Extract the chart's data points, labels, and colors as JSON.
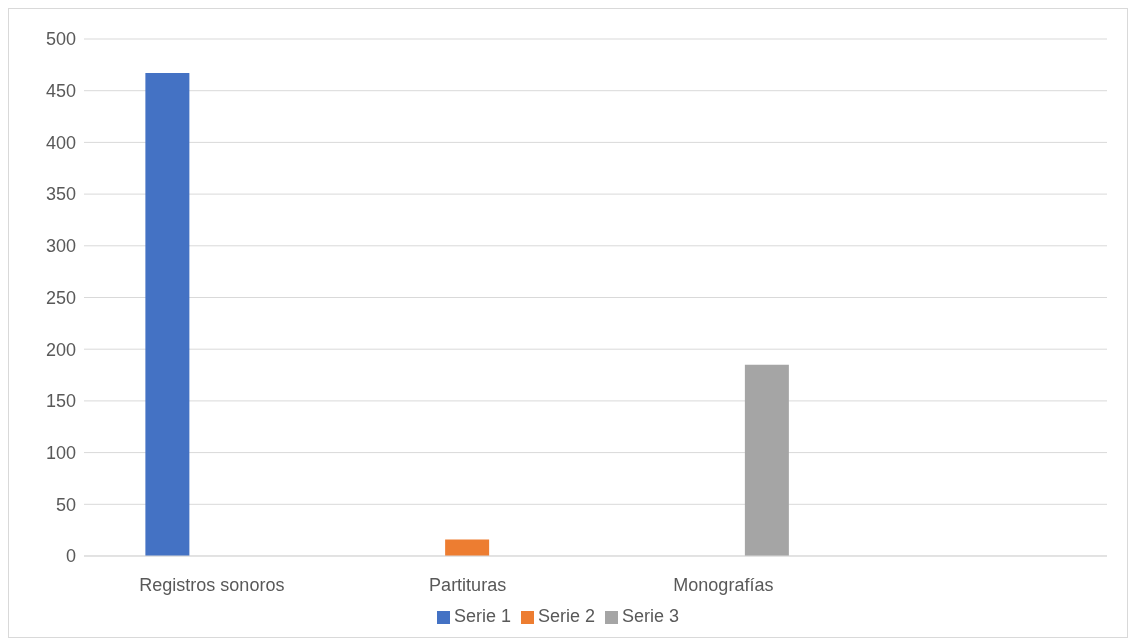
{
  "chart_data": {
    "type": "bar",
    "categories": [
      "Registros sonoros",
      "Partituras",
      "Monografías",
      null
    ],
    "series": [
      {
        "name": "Serie 1",
        "color": "#4472c4",
        "values": [
          467,
          null,
          null,
          null
        ]
      },
      {
        "name": "Serie 2",
        "color": "#ed7d31",
        "values": [
          null,
          16,
          null,
          null
        ]
      },
      {
        "name": "Serie 3",
        "color": "#a5a5a5",
        "values": [
          null,
          null,
          185,
          null
        ]
      }
    ],
    "ylim": [
      0,
      500
    ],
    "yticks": [
      0,
      50,
      100,
      150,
      200,
      250,
      300,
      350,
      400,
      450,
      500
    ],
    "grid": "y",
    "legend": "bottom"
  }
}
